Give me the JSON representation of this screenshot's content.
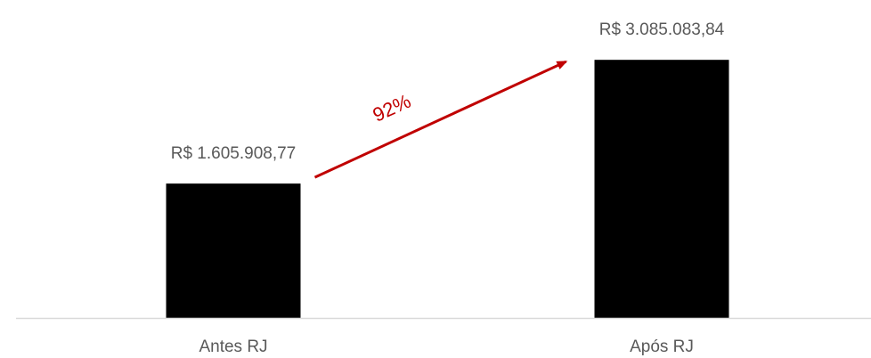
{
  "chart_data": {
    "type": "bar",
    "categories": [
      "Antes RJ",
      "Após RJ"
    ],
    "values": [
      1605908.77,
      3085083.84
    ],
    "data_labels": [
      "R$ 1.605.908,77",
      "R$ 3.085.083,84"
    ],
    "ylim": [
      0,
      3300000
    ],
    "grid": false,
    "annotation": {
      "text": "92%",
      "from": "Antes RJ",
      "to": "Após RJ"
    },
    "colors": {
      "bar": "#000000",
      "axis": "#d9d9d9",
      "labels": "#595959",
      "annotation": "#c00000"
    }
  }
}
